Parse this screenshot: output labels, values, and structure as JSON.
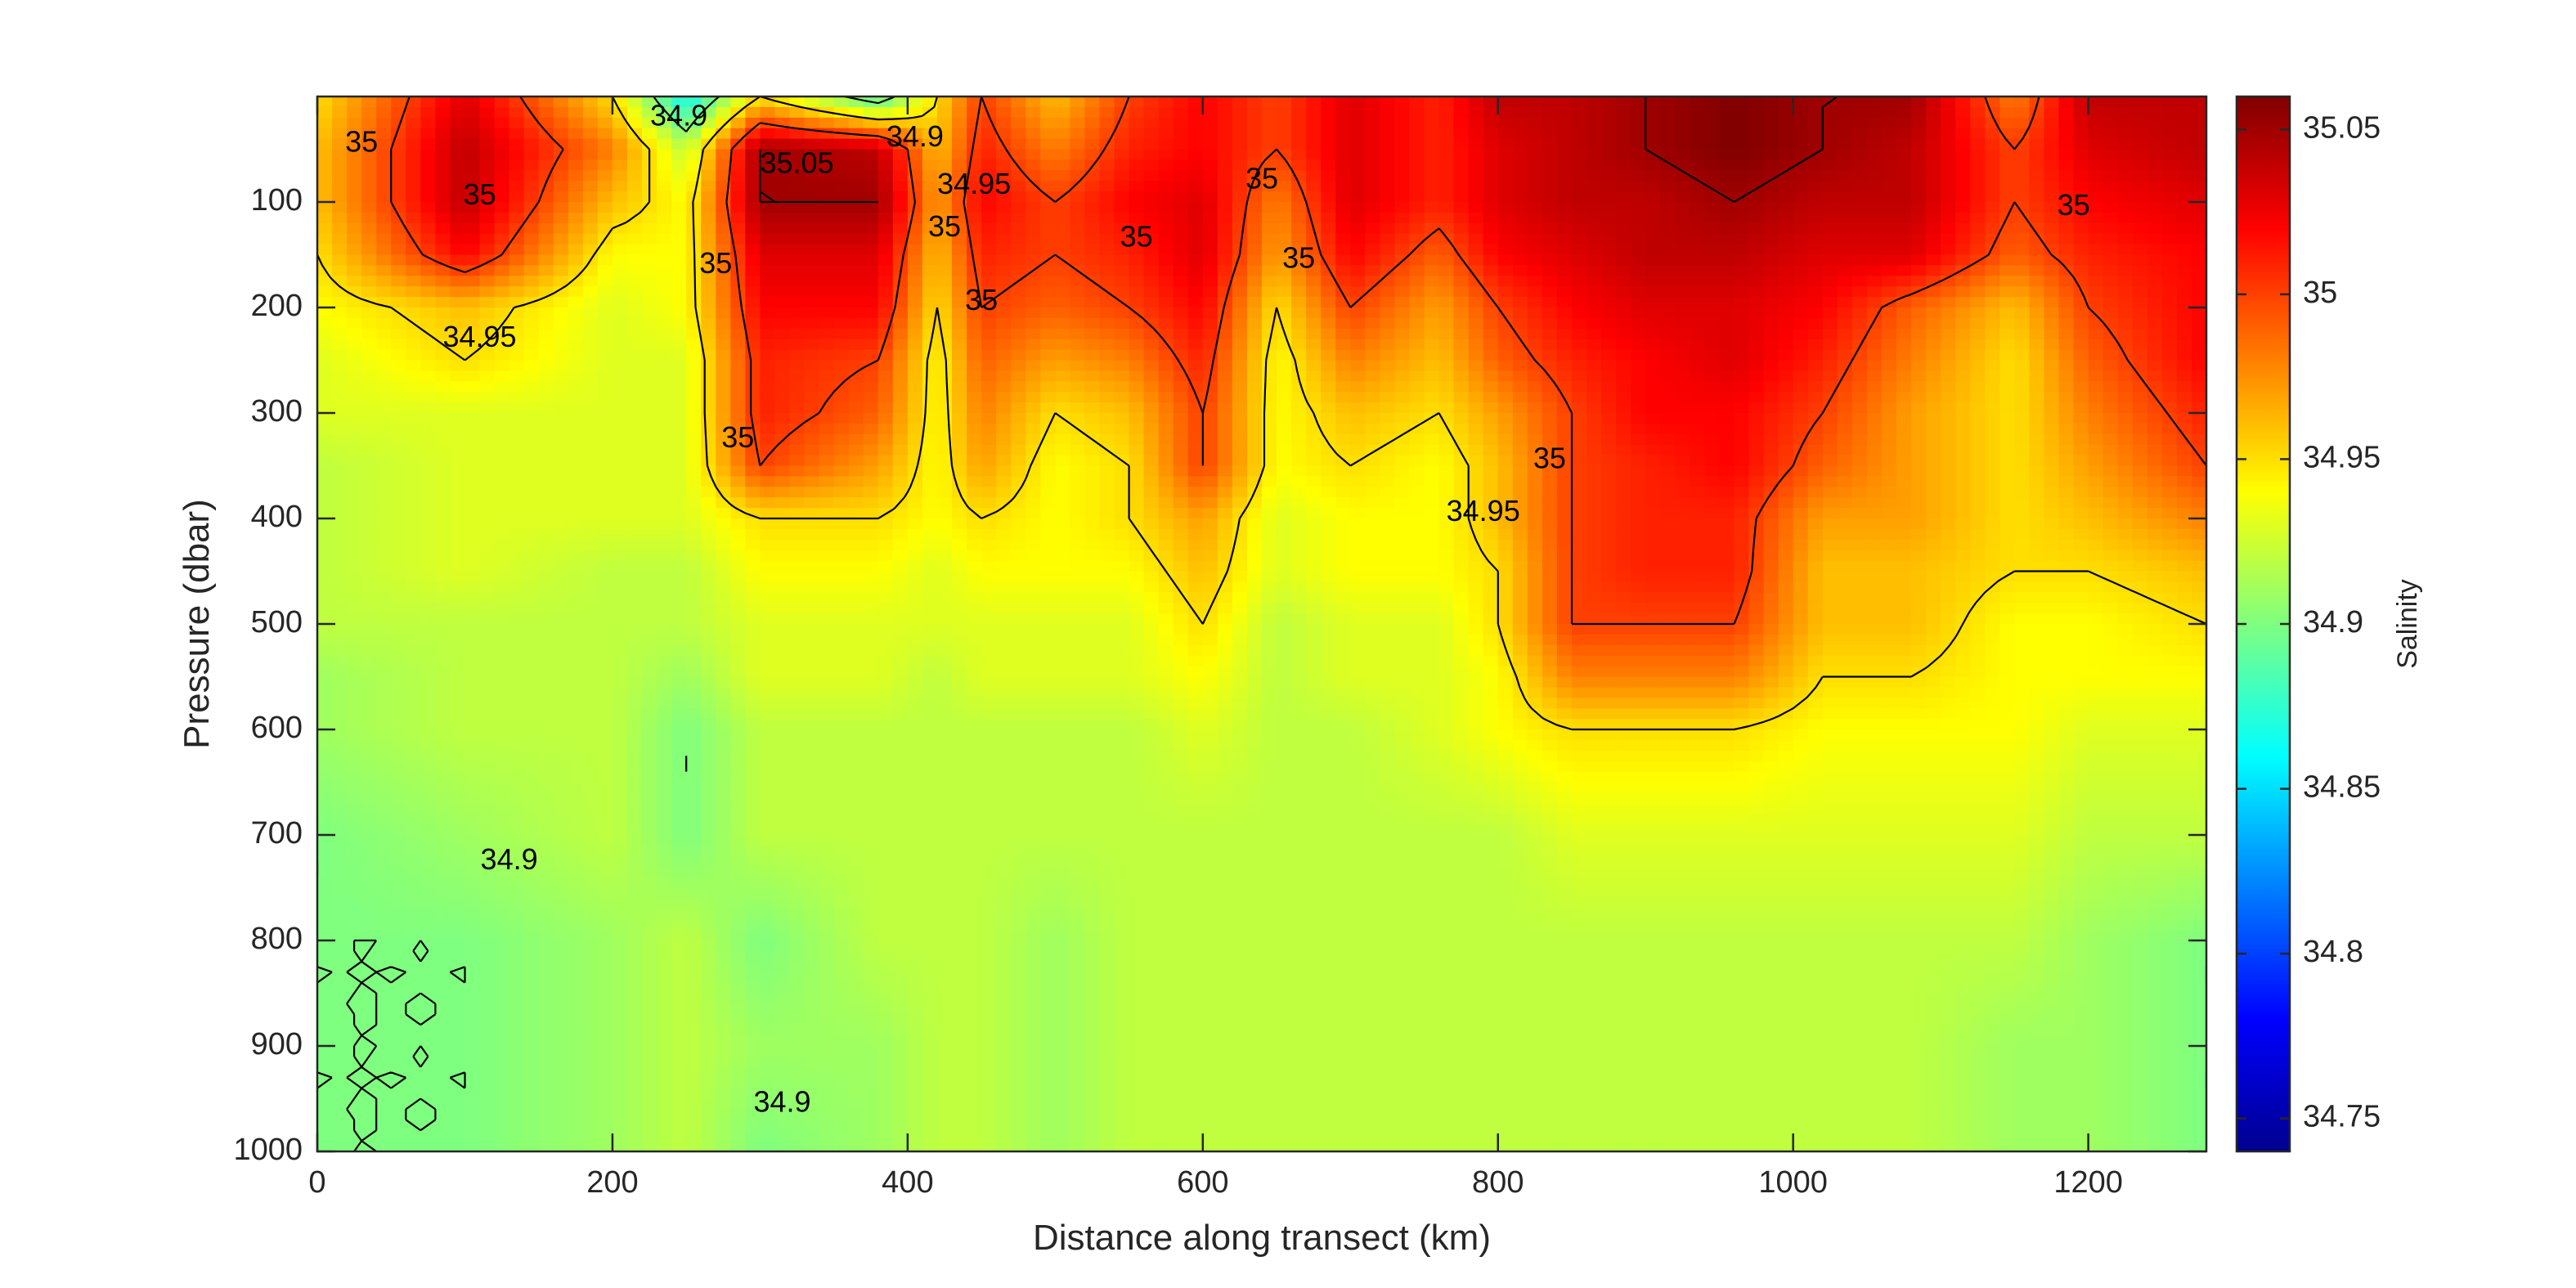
{
  "chart_data": {
    "type": "heatmap",
    "title": "",
    "xlabel": "Distance along transect (km)",
    "ylabel": "Pressure (dbar)",
    "xlim": [
      0,
      1280
    ],
    "ylim": [
      0,
      1000
    ],
    "y_reversed": true,
    "grid": false,
    "colormap": "jet",
    "x_ticks": [
      "0",
      "200",
      "400",
      "600",
      "800",
      "1000",
      "1200"
    ],
    "y_ticks": [
      "100",
      "200",
      "300",
      "400",
      "500",
      "600",
      "700",
      "800",
      "900",
      "1000"
    ],
    "colorbar": {
      "label": "Salinity",
      "range": [
        34.74,
        35.06
      ],
      "ticks": [
        "34.75",
        "34.8",
        "34.85",
        "34.9",
        "34.95",
        "35",
        "35.05"
      ]
    },
    "contour_levels": [
      34.9,
      34.95,
      35,
      35.05
    ],
    "contour_labels": [
      {
        "text": "35",
        "x": 30,
        "y": 45
      },
      {
        "text": "35",
        "x": 110,
        "y": 95
      },
      {
        "text": "34.95",
        "x": 110,
        "y": 230
      },
      {
        "text": "34.9",
        "x": 245,
        "y": 20
      },
      {
        "text": "35.05",
        "x": 325,
        "y": 65
      },
      {
        "text": "34.9",
        "x": 405,
        "y": 40
      },
      {
        "text": "34.95",
        "x": 445,
        "y": 85
      },
      {
        "text": "35",
        "x": 425,
        "y": 125
      },
      {
        "text": "35",
        "x": 270,
        "y": 160
      },
      {
        "text": "35",
        "x": 450,
        "y": 195
      },
      {
        "text": "35",
        "x": 285,
        "y": 325
      },
      {
        "text": "35",
        "x": 555,
        "y": 135
      },
      {
        "text": "35",
        "x": 640,
        "y": 80
      },
      {
        "text": "35",
        "x": 665,
        "y": 155
      },
      {
        "text": "35",
        "x": 835,
        "y": 345
      },
      {
        "text": "34.95",
        "x": 790,
        "y": 395
      },
      {
        "text": "35",
        "x": 1190,
        "y": 105
      },
      {
        "text": "34.9",
        "x": 130,
        "y": 725
      },
      {
        "text": "34.9",
        "x": 315,
        "y": 955
      }
    ],
    "salinity_grid": {
      "x": [
        0,
        100,
        200,
        250,
        300,
        380,
        420,
        450,
        500,
        550,
        600,
        650,
        700,
        760,
        800,
        850,
        900,
        960,
        1020,
        1080,
        1150,
        1200,
        1280
      ],
      "y": [
        0,
        50,
        100,
        150,
        200,
        250,
        300,
        350,
        400,
        450,
        500,
        550,
        600,
        700,
        800,
        900,
        1000
      ],
      "values": [
        [
          34.95,
          35.03,
          34.95,
          34.86,
          34.95,
          34.88,
          34.95,
          35.0,
          34.96,
          35.0,
          35.02,
          35.0,
          35.03,
          35.01,
          35.04,
          35.04,
          35.05,
          35.06,
          35.05,
          35.05,
          34.98,
          35.04,
          35.04
        ],
        [
          34.96,
          35.04,
          34.98,
          34.92,
          35.05,
          35.04,
          34.96,
          35.01,
          34.98,
          35.01,
          35.02,
          35.0,
          35.03,
          35.01,
          35.03,
          35.04,
          35.05,
          35.06,
          35.05,
          35.04,
          35.0,
          35.03,
          35.04
        ],
        [
          34.96,
          35.04,
          34.96,
          34.94,
          35.05,
          35.05,
          34.97,
          35.02,
          35.0,
          35.02,
          35.03,
          34.98,
          35.03,
          35.01,
          35.03,
          35.04,
          35.04,
          35.05,
          35.04,
          35.04,
          35.0,
          35.02,
          35.03
        ],
        [
          34.95,
          35.02,
          34.94,
          34.94,
          35.03,
          35.03,
          34.96,
          35.01,
          35.0,
          35.01,
          35.03,
          34.97,
          35.02,
          34.99,
          35.02,
          35.03,
          35.04,
          35.04,
          35.03,
          35.03,
          34.99,
          35.01,
          35.02
        ],
        [
          34.94,
          34.96,
          34.93,
          34.94,
          35.02,
          35.02,
          34.95,
          35.0,
          34.99,
          35.0,
          35.02,
          34.95,
          35.0,
          34.97,
          35.0,
          35.02,
          35.03,
          35.03,
          35.02,
          34.99,
          34.96,
          35.0,
          35.02
        ],
        [
          34.93,
          34.95,
          34.93,
          34.93,
          35.01,
          35.0,
          34.94,
          34.99,
          34.97,
          34.98,
          35.01,
          34.94,
          34.98,
          34.96,
          34.99,
          35.01,
          35.02,
          35.03,
          35.01,
          34.98,
          34.95,
          34.99,
          35.02
        ],
        [
          34.93,
          34.93,
          34.93,
          34.93,
          35.01,
          34.99,
          34.94,
          34.98,
          34.95,
          34.96,
          35.0,
          34.94,
          34.96,
          34.95,
          34.97,
          35.0,
          35.02,
          35.02,
          35.0,
          34.97,
          34.95,
          34.98,
          35.01
        ],
        [
          34.92,
          34.93,
          34.93,
          34.93,
          35.0,
          34.97,
          34.94,
          34.97,
          34.94,
          34.95,
          35.0,
          34.94,
          34.95,
          34.94,
          34.96,
          35.0,
          35.01,
          35.02,
          34.99,
          34.97,
          34.95,
          34.97,
          35.0
        ],
        [
          34.92,
          34.93,
          34.93,
          34.93,
          34.95,
          34.95,
          34.94,
          34.95,
          34.94,
          34.95,
          34.97,
          34.93,
          34.94,
          34.94,
          34.96,
          35.0,
          35.01,
          35.01,
          34.97,
          34.97,
          34.95,
          34.96,
          34.98
        ],
        [
          34.92,
          34.93,
          34.92,
          34.92,
          34.94,
          34.94,
          34.93,
          34.94,
          34.94,
          34.94,
          34.96,
          34.93,
          34.94,
          34.94,
          34.95,
          35.0,
          35.01,
          35.01,
          34.96,
          34.96,
          34.95,
          34.95,
          34.96
        ],
        [
          34.92,
          34.92,
          34.92,
          34.92,
          34.93,
          34.93,
          34.93,
          34.93,
          34.93,
          34.93,
          34.95,
          34.92,
          34.93,
          34.93,
          34.95,
          35.0,
          35.0,
          35.0,
          34.96,
          34.96,
          34.94,
          34.94,
          34.95
        ],
        [
          34.91,
          34.92,
          34.92,
          34.91,
          34.93,
          34.93,
          34.92,
          34.93,
          34.93,
          34.93,
          34.94,
          34.92,
          34.93,
          34.93,
          34.94,
          34.98,
          34.98,
          34.98,
          34.95,
          34.95,
          34.94,
          34.94,
          34.94
        ],
        [
          34.91,
          34.92,
          34.92,
          34.9,
          34.92,
          34.92,
          34.92,
          34.92,
          34.92,
          34.92,
          34.93,
          34.92,
          34.92,
          34.93,
          34.94,
          34.95,
          34.95,
          34.95,
          34.94,
          34.94,
          34.94,
          34.93,
          34.93
        ],
        [
          34.9,
          34.91,
          34.92,
          34.9,
          34.92,
          34.92,
          34.92,
          34.92,
          34.92,
          34.92,
          34.92,
          34.92,
          34.92,
          34.92,
          34.92,
          34.93,
          34.93,
          34.93,
          34.93,
          34.93,
          34.93,
          34.92,
          34.92
        ],
        [
          34.9,
          34.9,
          34.91,
          34.92,
          34.9,
          34.92,
          34.92,
          34.92,
          34.91,
          34.92,
          34.92,
          34.92,
          34.92,
          34.92,
          34.92,
          34.92,
          34.92,
          34.92,
          34.92,
          34.92,
          34.92,
          34.91,
          34.9
        ],
        [
          34.9,
          34.9,
          34.91,
          34.92,
          34.91,
          34.91,
          34.92,
          34.92,
          34.91,
          34.92,
          34.92,
          34.92,
          34.92,
          34.92,
          34.92,
          34.92,
          34.92,
          34.92,
          34.92,
          34.92,
          34.91,
          34.91,
          34.9
        ],
        [
          34.9,
          34.9,
          34.91,
          34.92,
          34.9,
          34.91,
          34.92,
          34.92,
          34.91,
          34.92,
          34.92,
          34.92,
          34.92,
          34.92,
          34.92,
          34.92,
          34.92,
          34.92,
          34.92,
          34.92,
          34.91,
          34.91,
          34.9
        ]
      ]
    }
  }
}
